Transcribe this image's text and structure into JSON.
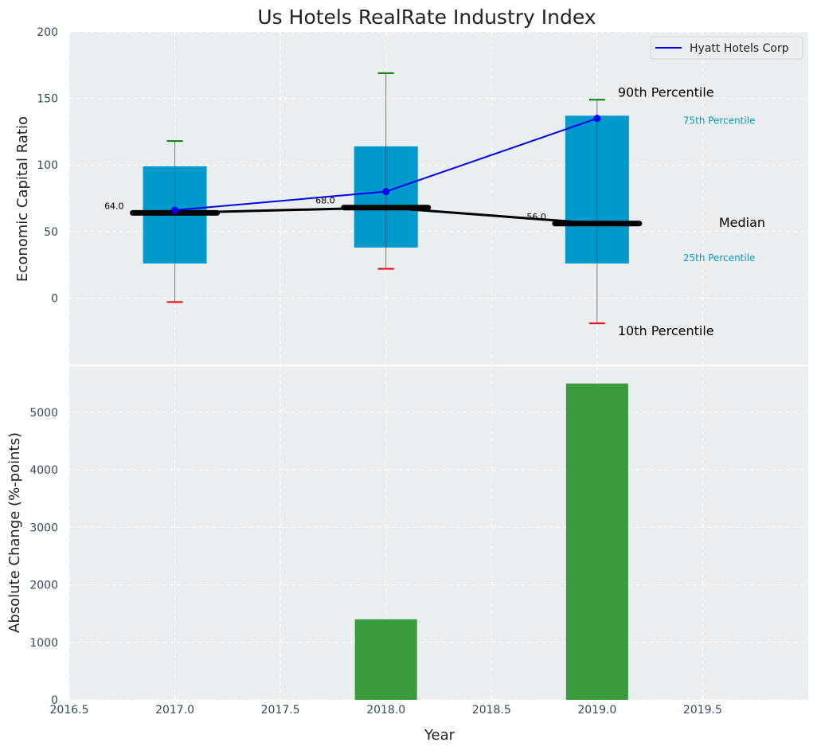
{
  "chart_data": [
    {
      "type": "box",
      "title": "Us Hotels RealRate Industry Index",
      "ylabel": "Economic Capital Ratio",
      "ylim": [
        -50,
        200
      ],
      "yticks": [
        "0",
        "50",
        "100",
        "150",
        "200"
      ],
      "grid": true,
      "legend_position": "top-right",
      "categories": [
        2017,
        2018,
        2019
      ],
      "p10": [
        -3,
        22,
        -19
      ],
      "p25": [
        26,
        38,
        26
      ],
      "median": [
        64,
        68,
        56
      ],
      "p75": [
        99,
        114,
        137
      ],
      "p90": [
        118,
        169,
        149
      ],
      "median_labels": [
        "64.0",
        "68.0",
        "56.0"
      ],
      "series": [
        {
          "name": "Hyatt Hotels Corp",
          "values": [
            66,
            80,
            135
          ],
          "color": "#0000ee"
        }
      ],
      "annotations": {
        "p90": "90th Percentile",
        "p75": "75th Percentile",
        "median": "Median",
        "p25": "25th Percentile",
        "p10": "10th Percentile"
      },
      "colors": {
        "box": "#0099cc",
        "median": "#000000",
        "whisker_top": "#008000",
        "whisker_bottom": "#ff0000",
        "background": "#eaeef0"
      }
    },
    {
      "type": "bar",
      "ylabel": "Absolute Change (%-points)",
      "xlabel": "Year",
      "ylim": [
        0,
        5800
      ],
      "yticks": [
        "0",
        "1000",
        "2000",
        "3000",
        "4000",
        "5000"
      ],
      "xlim": [
        2016.5,
        2020.0
      ],
      "xticks": [
        "2016.5",
        "2017.0",
        "2017.5",
        "2018.0",
        "2018.5",
        "2019.0",
        "2019.5"
      ],
      "categories": [
        2017,
        2018,
        2019
      ],
      "values": [
        0,
        1400,
        5500
      ],
      "colors": {
        "bar": "#3a9a3e",
        "background": "#eaeef0"
      }
    }
  ]
}
